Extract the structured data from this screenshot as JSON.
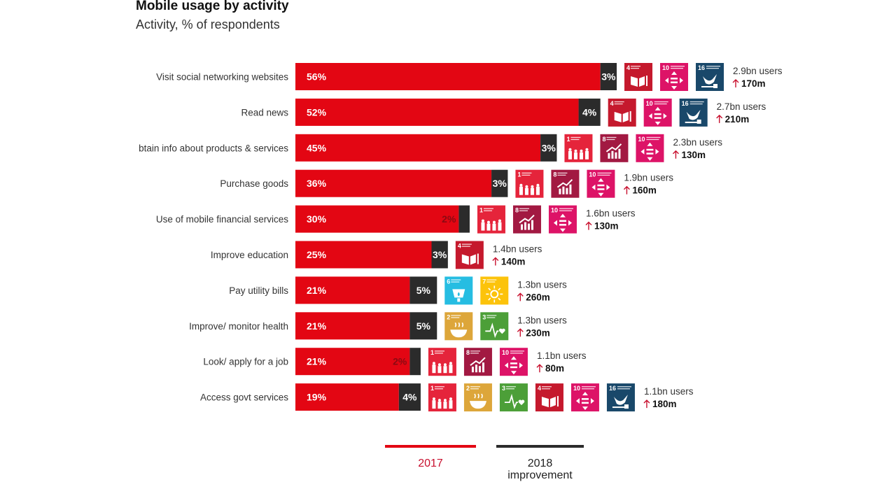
{
  "chart_data": {
    "type": "bar",
    "orientation": "horizontal",
    "stacked": true,
    "title": "Mobile usage by activity",
    "subtitle": "Activity, % of respondents",
    "xlabel": "",
    "ylabel": "",
    "xlim": [
      0,
      60
    ],
    "grid": false,
    "legend_position": "bottom",
    "categories": [
      "Visit social networking websites",
      "Read news",
      "Obtain info about products & services",
      "Purchase goods",
      "Use of mobile financial services",
      "Improve education",
      "Pay utility bills",
      "Improve/ monitor health",
      "Look/ apply for a job",
      "Access govt services"
    ],
    "category_display": [
      "Visit social networking websites",
      "Read news",
      "btain info about products & services",
      "Purchase goods",
      "Use of mobile financial services",
      "Improve education",
      "Pay utility bills",
      "Improve/ monitor health",
      "Look/ apply for a job",
      "Access govt services"
    ],
    "series": [
      {
        "name": "2017",
        "color": "#e30613",
        "values": [
          56,
          52,
          45,
          36,
          30,
          25,
          21,
          21,
          21,
          19
        ]
      },
      {
        "name": "2018 improvement",
        "color": "#2b2b2b",
        "values": [
          3,
          4,
          3,
          3,
          2,
          3,
          5,
          5,
          2,
          4
        ]
      }
    ],
    "value_labels_2017": [
      "56%",
      "52%",
      "45%",
      "36%",
      "30%",
      "25%",
      "21%",
      "21%",
      "21%",
      "19%"
    ],
    "value_labels_improvement": [
      "3%",
      "4%",
      "3%",
      "3%",
      "2%",
      "3%",
      "5%",
      "5%",
      "2%",
      "4%"
    ],
    "users": [
      "2.9bn users",
      "2.7bn users",
      "2.3bn users",
      "1.9bn users",
      "1.6bn users",
      "1.4bn users",
      "1.3bn users",
      "1.3bn users",
      "1.1bn users",
      "1.1bn users"
    ],
    "user_gain": [
      "170m",
      "210m",
      "130m",
      "160m",
      "130m",
      "140m",
      "260m",
      "230m",
      "80m",
      "180m"
    ],
    "sdg_icons": [
      [
        4,
        10,
        16
      ],
      [
        4,
        10,
        16
      ],
      [
        1,
        8,
        10
      ],
      [
        1,
        8,
        10
      ],
      [
        1,
        8,
        10
      ],
      [
        4
      ],
      [
        6,
        7
      ],
      [
        2,
        3
      ],
      [
        1,
        8,
        10
      ],
      [
        1,
        2,
        3,
        4,
        10,
        16
      ]
    ]
  },
  "sdg_catalog": {
    "1": {
      "name": "No poverty",
      "icon": "family-icon",
      "color": "#e5243b"
    },
    "2": {
      "name": "Zero hunger",
      "icon": "bowl-icon",
      "color": "#dda63a"
    },
    "3": {
      "name": "Good health and well-being",
      "icon": "heartbeat-icon",
      "color": "#4c9f38"
    },
    "4": {
      "name": "Quality education",
      "icon": "book-icon",
      "color": "#c5192d"
    },
    "6": {
      "name": "Clean water and sanitation",
      "icon": "water-drop-icon",
      "color": "#26bde2"
    },
    "7": {
      "name": "Affordable and clean energy",
      "icon": "sun-icon",
      "color": "#fcc30b"
    },
    "8": {
      "name": "Decent work and economic growth",
      "icon": "growth-chart-icon",
      "color": "#a21942"
    },
    "10": {
      "name": "Reduced inequalities",
      "icon": "equality-arrows-icon",
      "color": "#dd1367"
    },
    "16": {
      "name": "Peace, justice and strong institutions",
      "icon": "dove-icon",
      "color": "#19486a"
    }
  },
  "legend": {
    "items": [
      {
        "label": "2017",
        "color": "#e30613"
      },
      {
        "label_line1": "2018",
        "label_line2": "improvement",
        "color": "#2b2b2b"
      }
    ]
  }
}
